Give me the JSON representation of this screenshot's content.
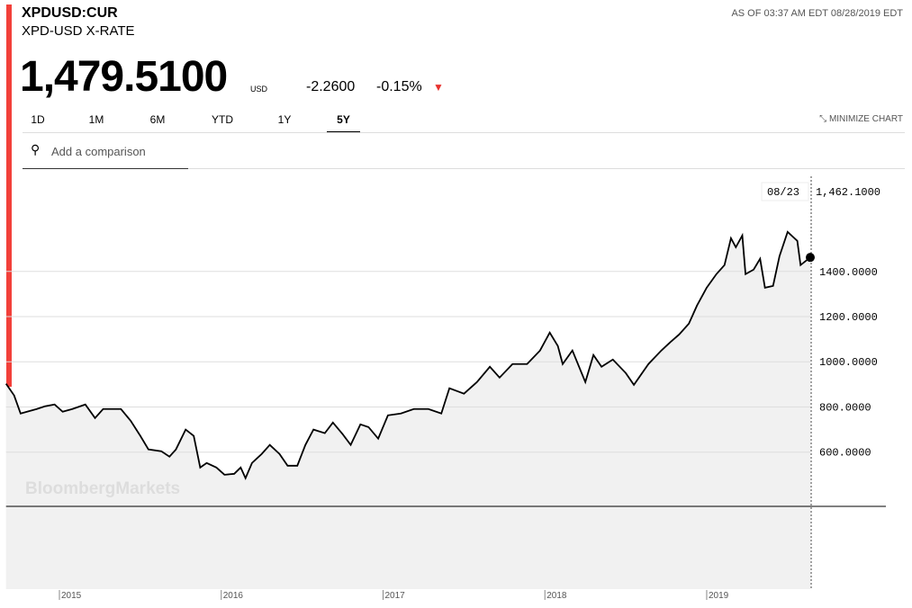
{
  "header": {
    "symbol": "XPDUSD:CUR",
    "name": "XPD-USD X-RATE",
    "as_of": "AS OF 03:37 AM EDT 08/28/2019 EDT",
    "price": "1,479.5100",
    "currency": "USD",
    "change": "-2.2600",
    "change_pct": "-0.15%",
    "ranges": [
      "1D",
      "1M",
      "6M",
      "YTD",
      "1Y",
      "5Y"
    ],
    "minimize": "MINIMIZE CHART",
    "comparison": "Add a comparison",
    "watermark": "BloombergMarkets"
  },
  "chart_data": {
    "type": "line",
    "color": "#000000",
    "fill": "#f1f1f1",
    "x": [
      2014.67,
      2014.72,
      2014.76,
      2014.8,
      2014.86,
      2014.91,
      2014.97,
      2015.02,
      2015.08,
      2015.16,
      2015.22,
      2015.27,
      2015.33,
      2015.38,
      2015.44,
      2015.5,
      2015.55,
      2015.63,
      2015.68,
      2015.72,
      2015.78,
      2015.83,
      2015.87,
      2015.91,
      2015.97,
      2016.02,
      2016.08,
      2016.12,
      2016.15,
      2016.19,
      2016.25,
      2016.3,
      2016.36,
      2016.41,
      2016.47,
      2016.52,
      2016.57,
      2016.64,
      2016.69,
      2016.75,
      2016.8,
      2016.86,
      2016.91,
      2016.97,
      2017.03,
      2017.11,
      2017.19,
      2017.28,
      2017.36,
      2017.41,
      2017.5,
      2017.58,
      2017.66,
      2017.72,
      2017.8,
      2017.89,
      2017.97,
      2018.03,
      2018.08,
      2018.11,
      2018.17,
      2018.25,
      2018.3,
      2018.35,
      2018.42,
      2018.5,
      2018.55,
      2018.64,
      2018.72,
      2018.78,
      2018.83,
      2018.89,
      2018.94,
      2019.0,
      2019.06,
      2019.11,
      2019.15,
      2019.18,
      2019.22,
      2019.24,
      2019.29,
      2019.33,
      2019.36,
      2019.41,
      2019.45,
      2019.5,
      2019.56,
      2019.58,
      2019.64
    ],
    "values": [
      903,
      851,
      771,
      779,
      791,
      803,
      811,
      779,
      791,
      811,
      751,
      791,
      791,
      791,
      739,
      672,
      612,
      604,
      580,
      612,
      700,
      672,
      532,
      552,
      532,
      500,
      504,
      532,
      485,
      552,
      592,
      632,
      592,
      540,
      540,
      632,
      700,
      684,
      731,
      680,
      632,
      723,
      711,
      660,
      763,
      771,
      791,
      791,
      771,
      883,
      859,
      910,
      978,
      930,
      990,
      990,
      1050,
      1129,
      1070,
      990,
      1050,
      910,
      1030,
      978,
      1010,
      950,
      898,
      990,
      1050,
      1090,
      1121,
      1169,
      1249,
      1328,
      1388,
      1428,
      1547,
      1507,
      1559,
      1388,
      1408,
      1456,
      1328,
      1336,
      1468,
      1575,
      1535,
      1428,
      1462.1
    ],
    "xlim": [
      2014.67,
      2019.64
    ],
    "ylim": [
      360,
      1845
    ],
    "xticks": [
      2015,
      2016,
      2017,
      2018,
      2019
    ],
    "yticks": [
      {
        "value": 600,
        "label": "600.0000"
      },
      {
        "value": 800,
        "label": "800.0000"
      },
      {
        "value": 1000,
        "label": "1000.0000"
      },
      {
        "value": 1200,
        "label": "1200.0000"
      },
      {
        "value": 1400,
        "label": "1400.0000"
      }
    ],
    "grid": true,
    "annotations": {
      "date": "08/23",
      "value": "1,462.1000"
    }
  }
}
